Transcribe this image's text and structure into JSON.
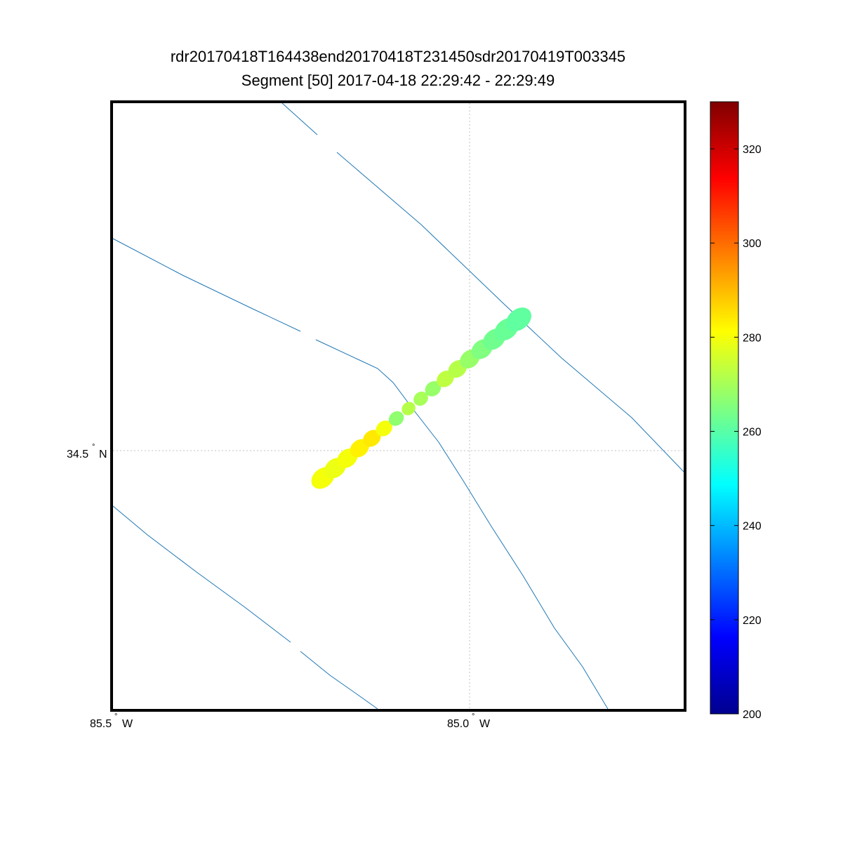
{
  "title": {
    "line1": "rdr20170418T164438end20170418T231450sdr20170419T003345",
    "line2": "Segment [50] 2017-04-18 22:29:42 - 22:29:49"
  },
  "map": {
    "lat_tick": {
      "value": 34.5,
      "label": "34.5",
      "hemisphere": "N"
    },
    "lon_ticks": [
      {
        "value": -85.5,
        "label": "85.5",
        "hemisphere": "W"
      },
      {
        "value": -85.0,
        "label": "85.0",
        "hemisphere": "W"
      }
    ],
    "degree_symbol": "°",
    "line_color": "#1f77b4",
    "grid": "dotted at labeled ticks"
  },
  "colorbar": {
    "min": 200,
    "max": 330,
    "ticks": [
      200,
      220,
      240,
      260,
      280,
      300,
      320
    ],
    "colormap": "jet"
  },
  "track": {
    "count": 17,
    "values": [
      280,
      279,
      280,
      283,
      284,
      280,
      267,
      272,
      270,
      268,
      273,
      272,
      268,
      265,
      263,
      262,
      261
    ]
  }
}
